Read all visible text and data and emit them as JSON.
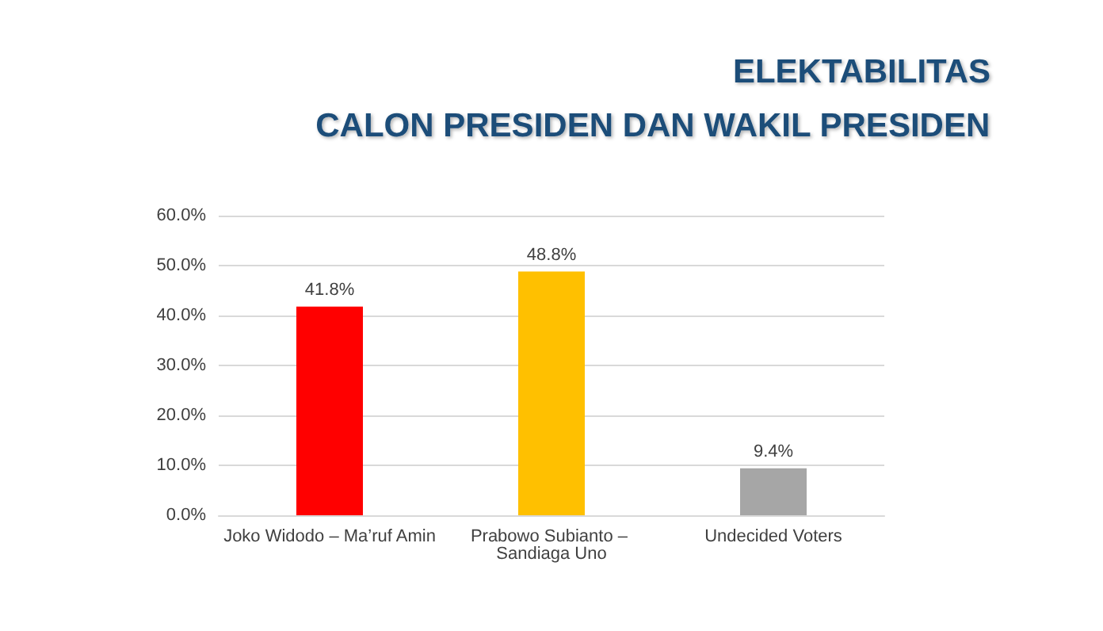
{
  "chart_data": {
    "type": "bar",
    "title": "ELEKTABILITAS",
    "subtitle": "CALON PRESIDEN DAN WAKIL PRESIDEN",
    "categories": [
      "Joko Widodo – Ma’ruf Amin",
      "Prabowo Subianto – Sandiaga Uno",
      "Undecided Voters"
    ],
    "values": [
      41.8,
      48.8,
      9.4
    ],
    "colors": [
      "#ff0000",
      "#ffc000",
      "#a6a6a6"
    ],
    "value_labels": [
      "41.8%",
      "48.8%",
      "9.4%"
    ],
    "ylim": [
      0,
      60
    ],
    "yticks": [
      {
        "value": 0,
        "label": "0.0%"
      },
      {
        "value": 10,
        "label": "10.0%"
      },
      {
        "value": 20,
        "label": "20.0%"
      },
      {
        "value": 30,
        "label": "30.0%"
      },
      {
        "value": 40,
        "label": "40.0%"
      },
      {
        "value": 50,
        "label": "50.0%"
      },
      {
        "value": 60,
        "label": "60.0%"
      }
    ],
    "grid": "y"
  }
}
